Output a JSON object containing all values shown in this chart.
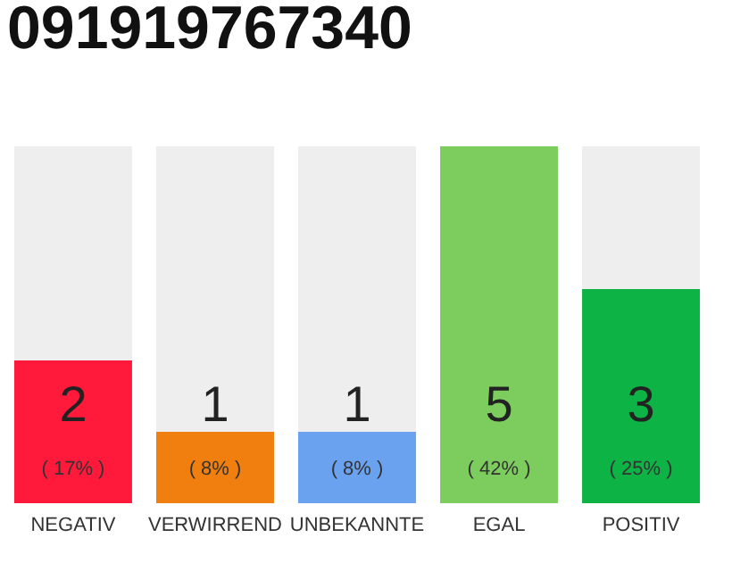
{
  "chart_data": {
    "type": "bar",
    "title": "091919767340",
    "categories": [
      "NEGATIV",
      "VERWIRREND",
      "UNBEKANNTE",
      "EGAL",
      "POSITIV"
    ],
    "values": [
      2,
      1,
      1,
      5,
      3
    ],
    "colors": [
      "#ff1a3c",
      "#f07f0f",
      "#6aa2f0",
      "#7ccd5e",
      "#0db345"
    ],
    "data_labels": true,
    "annotations": [
      "( 17% )",
      "( 8% )",
      "( 8% )",
      "( 42% )",
      "( 25% )"
    ],
    "grid": false
  }
}
